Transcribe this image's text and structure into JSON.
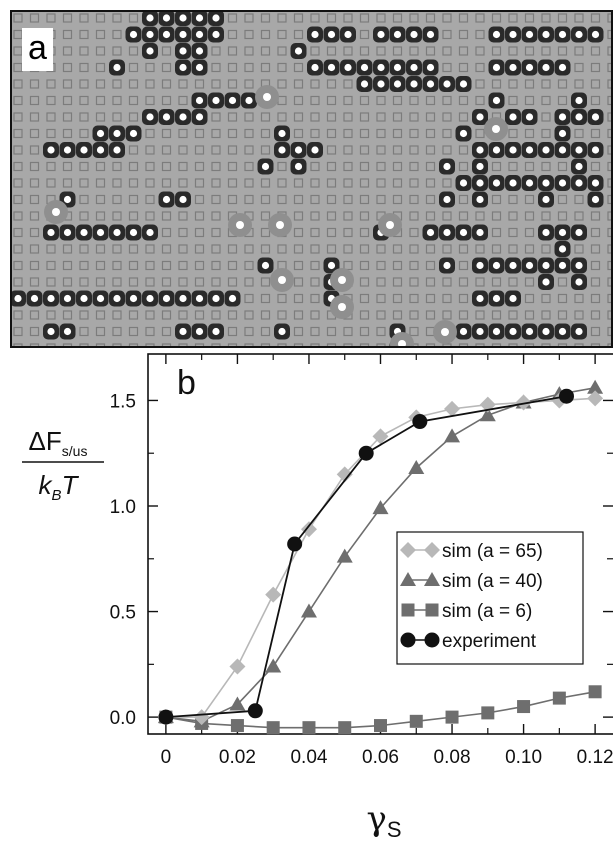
{
  "panel_a": {
    "label": "a",
    "description_hidden": ""
  },
  "chart_data": {
    "type": "line",
    "panel_label": "b",
    "ylabel_numerator": "ΔF",
    "ylabel_numerator_sub": "s/us",
    "ylabel_denominator": "k",
    "ylabel_denominator_sub": "B",
    "ylabel_denominator_tail": "T",
    "xlabel": "γ",
    "xlabel_sub": "S",
    "xlim": [
      -0.005,
      0.125
    ],
    "ylim": [
      -0.08,
      1.72
    ],
    "x_ticks": [
      "0",
      "0.02",
      "0.04",
      "0.06",
      "0.08",
      "0.10",
      "0.12"
    ],
    "x_tick_values": [
      0,
      0.02,
      0.04,
      0.06,
      0.08,
      0.1,
      0.12
    ],
    "y_ticks": [
      "0.0",
      "0.5",
      "1.0",
      "1.5"
    ],
    "y_tick_values": [
      0.0,
      0.5,
      1.0,
      1.5
    ],
    "legend_position": "right",
    "series": [
      {
        "name": "sim (a = 65)",
        "marker": "diamond",
        "color": "#b8b8b8",
        "x": [
          0,
          0.01,
          0.02,
          0.03,
          0.04,
          0.05,
          0.06,
          0.07,
          0.08,
          0.09,
          0.1,
          0.11,
          0.12
        ],
        "y": [
          0.0,
          0.0,
          0.24,
          0.58,
          0.89,
          1.15,
          1.33,
          1.42,
          1.46,
          1.48,
          1.49,
          1.5,
          1.51
        ]
      },
      {
        "name": "sim (a = 40)",
        "marker": "triangle",
        "color": "#6e6e6e",
        "x": [
          0,
          0.01,
          0.02,
          0.03,
          0.04,
          0.05,
          0.06,
          0.07,
          0.08,
          0.09,
          0.1,
          0.11,
          0.12
        ],
        "y": [
          0.0,
          -0.02,
          0.06,
          0.24,
          0.5,
          0.76,
          0.99,
          1.18,
          1.33,
          1.43,
          1.49,
          1.53,
          1.56
        ]
      },
      {
        "name": "sim (a = 6)",
        "marker": "square",
        "color": "#6e6e6e",
        "x": [
          0,
          0.01,
          0.02,
          0.03,
          0.04,
          0.05,
          0.06,
          0.07,
          0.08,
          0.09,
          0.1,
          0.11,
          0.12
        ],
        "y": [
          0.0,
          -0.03,
          -0.04,
          -0.05,
          -0.05,
          -0.05,
          -0.04,
          -0.02,
          0.0,
          0.02,
          0.05,
          0.09,
          0.12
        ]
      },
      {
        "name": "experiment",
        "marker": "circle",
        "color": "#111111",
        "x": [
          0,
          0.025,
          0.036,
          0.056,
          0.071,
          0.112
        ],
        "y": [
          0.0,
          0.03,
          0.82,
          1.25,
          1.4,
          1.52
        ]
      }
    ]
  }
}
